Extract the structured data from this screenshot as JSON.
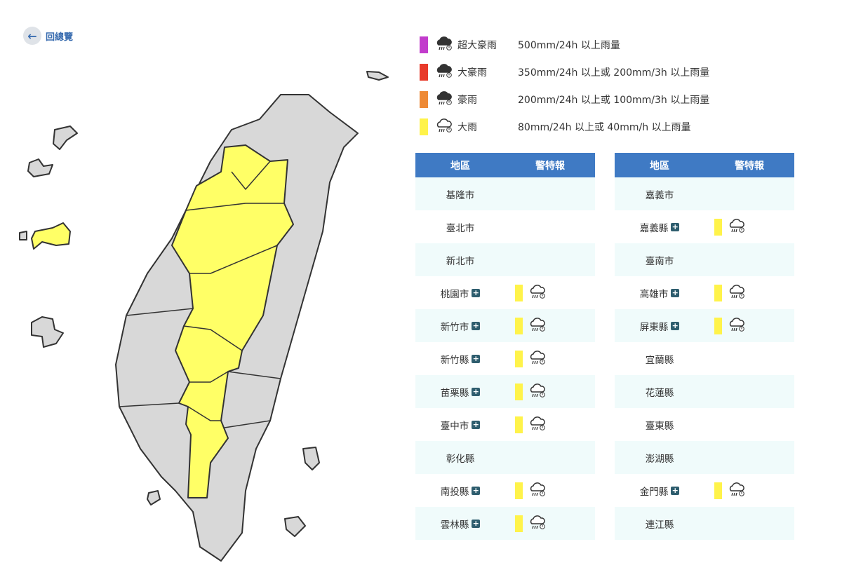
{
  "back_label": "回總覽",
  "colors": {
    "super_torrential": "#c23ccc",
    "extremely_heavy": "#e83a2a",
    "torrential": "#ee8a36",
    "heavy": "#fff34a",
    "header": "#3f7ac4",
    "map_gray": "#d8d8d8",
    "map_yellow": "#ffff66"
  },
  "legend": [
    {
      "level": "超大豪雨",
      "desc": "500mm/24h 以上雨量",
      "color": "#c23ccc",
      "icon": "heavy-rain-cloud-dark-icon"
    },
    {
      "level": "大豪雨",
      "desc": "350mm/24h 以上或 200mm/3h 以上雨量",
      "color": "#e83a2a",
      "icon": "heavy-rain-cloud-dark-icon"
    },
    {
      "level": "豪雨",
      "desc": "200mm/24h 以上或 100mm/3h 以上雨量",
      "color": "#ee8a36",
      "icon": "rain-cloud-dark-icon"
    },
    {
      "level": "大雨",
      "desc": "80mm/24h 以上或 40mm/h 以上雨量",
      "color": "#fff34a",
      "icon": "rain-cloud-outline-icon"
    }
  ],
  "table_header": {
    "region": "地區",
    "alert": "警特報"
  },
  "left_table": [
    {
      "name": "基隆市",
      "alert": false
    },
    {
      "name": "臺北市",
      "alert": false
    },
    {
      "name": "新北市",
      "alert": false
    },
    {
      "name": "桃園市",
      "alert": true
    },
    {
      "name": "新竹市",
      "alert": true
    },
    {
      "name": "新竹縣",
      "alert": true
    },
    {
      "name": "苗栗縣",
      "alert": true
    },
    {
      "name": "臺中市",
      "alert": true
    },
    {
      "name": "彰化縣",
      "alert": false
    },
    {
      "name": "南投縣",
      "alert": true
    },
    {
      "name": "雲林縣",
      "alert": true
    }
  ],
  "right_table": [
    {
      "name": "嘉義市",
      "alert": false
    },
    {
      "name": "嘉義縣",
      "alert": true
    },
    {
      "name": "臺南市",
      "alert": false
    },
    {
      "name": "高雄市",
      "alert": true
    },
    {
      "name": "屏東縣",
      "alert": true
    },
    {
      "name": "宜蘭縣",
      "alert": false
    },
    {
      "name": "花蓮縣",
      "alert": false
    },
    {
      "name": "臺東縣",
      "alert": false
    },
    {
      "name": "澎湖縣",
      "alert": false
    },
    {
      "name": "金門縣",
      "alert": true
    },
    {
      "name": "連江縣",
      "alert": false
    }
  ],
  "alert_level": "大雨"
}
